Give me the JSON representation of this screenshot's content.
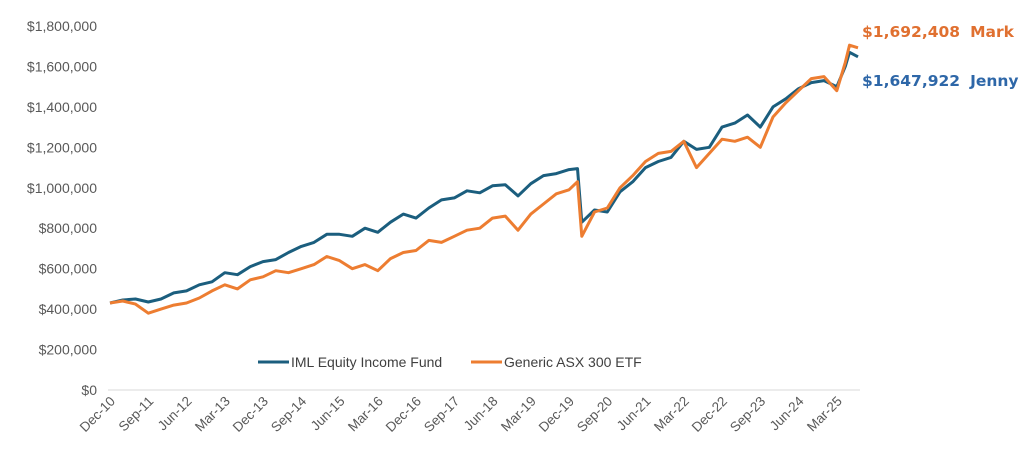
{
  "chart_data": {
    "type": "line",
    "title": "",
    "xlabel": "",
    "ylabel": "",
    "x_unit": "months since Dec-10",
    "x_tick_labels": [
      "Dec-10",
      "Sep-11",
      "Jun-12",
      "Mar-13",
      "Dec-13",
      "Sep-14",
      "Jun-15",
      "Mar-16",
      "Dec-16",
      "Sep-17",
      "Jun-18",
      "Mar-19",
      "Dec-19",
      "Sep-20",
      "Jun-21",
      "Mar-22",
      "Dec-22",
      "Sep-23",
      "Jun-24",
      "Mar-25"
    ],
    "x_tick_step_months": 9,
    "y_ticks": [
      "$0",
      "$200,000",
      "$400,000",
      "$600,000",
      "$800,000",
      "$1,000,000",
      "$1,200,000",
      "$1,400,000",
      "$1,600,000",
      "$1,800,000"
    ],
    "ylim": [
      0,
      1800000
    ],
    "grid": false,
    "legend_position": "bottom-center",
    "x": [
      0,
      3,
      6,
      9,
      12,
      15,
      18,
      21,
      24,
      27,
      30,
      33,
      36,
      39,
      42,
      45,
      48,
      51,
      54,
      57,
      60,
      63,
      66,
      69,
      72,
      75,
      78,
      81,
      84,
      87,
      90,
      93,
      96,
      99,
      102,
      105,
      108,
      110,
      111,
      114,
      117,
      120,
      123,
      126,
      129,
      132,
      135,
      138,
      141,
      144,
      147,
      150,
      153,
      156,
      159,
      162,
      165,
      168,
      171,
      173,
      174,
      176
    ],
    "series": [
      {
        "name": "IML Equity Income Fund",
        "color": "#1b5e7e",
        "values": [
          430000,
          445000,
          450000,
          435000,
          450000,
          480000,
          490000,
          520000,
          535000,
          580000,
          570000,
          610000,
          635000,
          645000,
          680000,
          710000,
          730000,
          770000,
          770000,
          760000,
          800000,
          780000,
          830000,
          870000,
          850000,
          900000,
          940000,
          950000,
          985000,
          975000,
          1010000,
          1015000,
          960000,
          1020000,
          1060000,
          1070000,
          1090000,
          1095000,
          830000,
          890000,
          880000,
          980000,
          1030000,
          1100000,
          1130000,
          1150000,
          1230000,
          1190000,
          1200000,
          1300000,
          1320000,
          1360000,
          1300000,
          1400000,
          1440000,
          1490000,
          1520000,
          1530000,
          1500000,
          1600000,
          1670000,
          1647922
        ]
      },
      {
        "name": "Generic ASX 300 ETF",
        "color": "#ed7d31",
        "values": [
          430000,
          440000,
          425000,
          380000,
          400000,
          420000,
          430000,
          455000,
          490000,
          520000,
          500000,
          545000,
          560000,
          590000,
          580000,
          600000,
          620000,
          660000,
          640000,
          600000,
          620000,
          590000,
          650000,
          680000,
          690000,
          740000,
          730000,
          760000,
          790000,
          800000,
          850000,
          860000,
          790000,
          870000,
          920000,
          970000,
          990000,
          1030000,
          760000,
          880000,
          900000,
          1000000,
          1060000,
          1130000,
          1170000,
          1180000,
          1230000,
          1100000,
          1170000,
          1240000,
          1230000,
          1250000,
          1200000,
          1350000,
          1420000,
          1480000,
          1540000,
          1550000,
          1480000,
          1620000,
          1705000,
          1692408
        ]
      }
    ],
    "annotations": [
      {
        "series": "Generic ASX 300 ETF",
        "value_text": "$1,692,408",
        "name_text": "Mark",
        "color": "#e07030"
      },
      {
        "series": "IML Equity Income Fund",
        "value_text": "$1,647,922",
        "name_text": "Jenny",
        "color": "#2e67a8"
      }
    ]
  }
}
